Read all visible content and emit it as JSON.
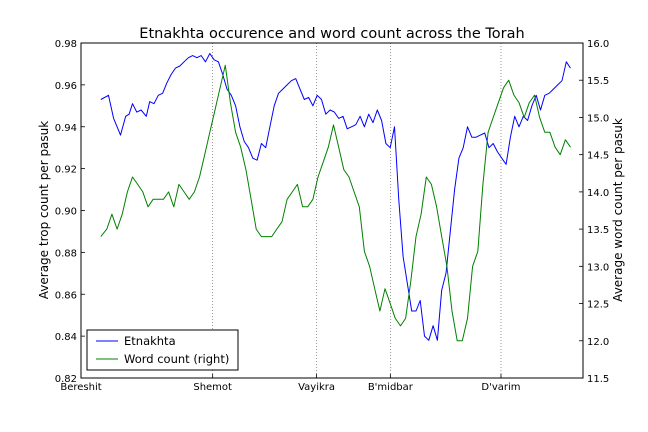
{
  "chart_data": {
    "type": "line",
    "title": "Etnakhta occurence and word count across the Torah",
    "ylabel_left": "Average trop count per pasuk",
    "ylabel_right": "Average word count per pasuk",
    "xlim": [
      0,
      5845
    ],
    "ylim_left": [
      0.82,
      0.98
    ],
    "ylim_right": [
      11.5,
      16.0
    ],
    "left_ticks": [
      "0.82",
      "0.84",
      "0.86",
      "0.88",
      "0.90",
      "0.92",
      "0.94",
      "0.96",
      "0.98"
    ],
    "right_ticks": [
      "11.5",
      "12.0",
      "12.5",
      "13.0",
      "13.5",
      "14.0",
      "14.5",
      "15.0",
      "15.5",
      "16.0"
    ],
    "books": [
      {
        "label": "Bereshit",
        "x": 0
      },
      {
        "label": "Shemot",
        "x": 1533
      },
      {
        "label": "Vayikra",
        "x": 2743
      },
      {
        "label": "B'midbar",
        "x": 3602
      },
      {
        "label": "D'varim",
        "x": 4890
      }
    ],
    "grid": "vertical dotted lines at book boundaries",
    "legend_position": "lower-left",
    "series": [
      {
        "name": "Etnakhta",
        "axis": "left",
        "color": "#0000ff",
        "x": [
          230,
          320,
          380,
          420,
          460,
          520,
          560,
          600,
          650,
          700,
          760,
          800,
          850,
          900,
          950,
          1000,
          1050,
          1100,
          1150,
          1200,
          1250,
          1300,
          1350,
          1400,
          1450,
          1500,
          1550,
          1600,
          1650,
          1700,
          1750,
          1800,
          1850,
          1900,
          1950,
          2000,
          2050,
          2100,
          2150,
          2200,
          2250,
          2300,
          2350,
          2400,
          2450,
          2500,
          2550,
          2600,
          2650,
          2700,
          2750,
          2800,
          2850,
          2900,
          2950,
          3000,
          3050,
          3100,
          3150,
          3200,
          3250,
          3300,
          3350,
          3400,
          3450,
          3500,
          3550,
          3600,
          3650,
          3700,
          3750,
          3800,
          3850,
          3900,
          3950,
          4000,
          4050,
          4100,
          4150,
          4200,
          4250,
          4300,
          4350,
          4400,
          4450,
          4500,
          4550,
          4600,
          4650,
          4700,
          4750,
          4800,
          4850,
          4900,
          4950,
          5000,
          5050,
          5100,
          5150,
          5200,
          5250,
          5300,
          5350,
          5400,
          5450,
          5500,
          5550,
          5600,
          5650,
          5700
        ],
        "y": [
          0.953,
          0.955,
          0.944,
          0.94,
          0.936,
          0.945,
          0.946,
          0.951,
          0.947,
          0.948,
          0.945,
          0.952,
          0.951,
          0.955,
          0.956,
          0.961,
          0.965,
          0.968,
          0.969,
          0.971,
          0.973,
          0.974,
          0.973,
          0.974,
          0.971,
          0.975,
          0.972,
          0.971,
          0.965,
          0.958,
          0.955,
          0.95,
          0.94,
          0.933,
          0.93,
          0.925,
          0.924,
          0.932,
          0.93,
          0.94,
          0.95,
          0.956,
          0.958,
          0.96,
          0.962,
          0.963,
          0.958,
          0.953,
          0.954,
          0.95,
          0.955,
          0.953,
          0.946,
          0.948,
          0.947,
          0.944,
          0.945,
          0.939,
          0.94,
          0.941,
          0.945,
          0.94,
          0.946,
          0.942,
          0.948,
          0.943,
          0.932,
          0.93,
          0.94,
          0.905,
          0.878,
          0.865,
          0.852,
          0.852,
          0.857,
          0.84,
          0.838,
          0.845,
          0.838,
          0.862,
          0.87,
          0.89,
          0.91,
          0.925,
          0.93,
          0.94,
          0.935,
          0.935,
          0.936,
          0.937,
          0.93,
          0.932,
          0.928,
          0.925,
          0.922,
          0.935,
          0.945,
          0.94,
          0.945,
          0.943,
          0.95,
          0.955,
          0.948,
          0.955,
          0.956,
          0.958,
          0.96,
          0.962,
          0.971,
          0.968
        ]
      },
      {
        "name": "Word count (right)",
        "axis": "right",
        "color": "#008000",
        "x": [
          230,
          300,
          360,
          420,
          480,
          540,
          600,
          660,
          720,
          780,
          840,
          900,
          960,
          1020,
          1080,
          1140,
          1200,
          1260,
          1320,
          1380,
          1440,
          1500,
          1560,
          1620,
          1680,
          1740,
          1800,
          1860,
          1920,
          1980,
          2040,
          2100,
          2160,
          2220,
          2280,
          2340,
          2400,
          2460,
          2520,
          2580,
          2640,
          2700,
          2760,
          2820,
          2880,
          2940,
          3000,
          3060,
          3120,
          3180,
          3240,
          3300,
          3360,
          3420,
          3480,
          3540,
          3600,
          3660,
          3720,
          3780,
          3840,
          3900,
          3960,
          4020,
          4080,
          4140,
          4200,
          4260,
          4320,
          4380,
          4440,
          4500,
          4560,
          4620,
          4680,
          4740,
          4800,
          4860,
          4920,
          4980,
          5040,
          5100,
          5160,
          5220,
          5280,
          5340,
          5400,
          5460,
          5520,
          5580,
          5640,
          5700
        ],
        "y": [
          13.4,
          13.5,
          13.7,
          13.5,
          13.7,
          14.0,
          14.2,
          14.1,
          14.0,
          13.8,
          13.9,
          13.9,
          13.9,
          14.0,
          13.8,
          14.1,
          14.0,
          13.9,
          14.0,
          14.2,
          14.5,
          14.8,
          15.1,
          15.4,
          15.7,
          15.2,
          14.8,
          14.6,
          14.3,
          13.9,
          13.5,
          13.4,
          13.4,
          13.4,
          13.5,
          13.6,
          13.9,
          14.0,
          14.1,
          13.8,
          13.8,
          13.9,
          14.2,
          14.4,
          14.6,
          14.9,
          14.6,
          14.3,
          14.2,
          14.0,
          13.8,
          13.2,
          13.0,
          12.7,
          12.4,
          12.7,
          12.5,
          12.3,
          12.2,
          12.3,
          12.8,
          13.4,
          13.7,
          14.2,
          14.1,
          13.8,
          13.4,
          13.0,
          12.4,
          12.0,
          12.0,
          12.3,
          13.0,
          13.2,
          14.1,
          14.8,
          15.0,
          15.2,
          15.4,
          15.5,
          15.3,
          15.2,
          15.0,
          15.2,
          15.3,
          15.0,
          14.8,
          14.8,
          14.6,
          14.5,
          14.7,
          14.6
        ]
      }
    ]
  }
}
